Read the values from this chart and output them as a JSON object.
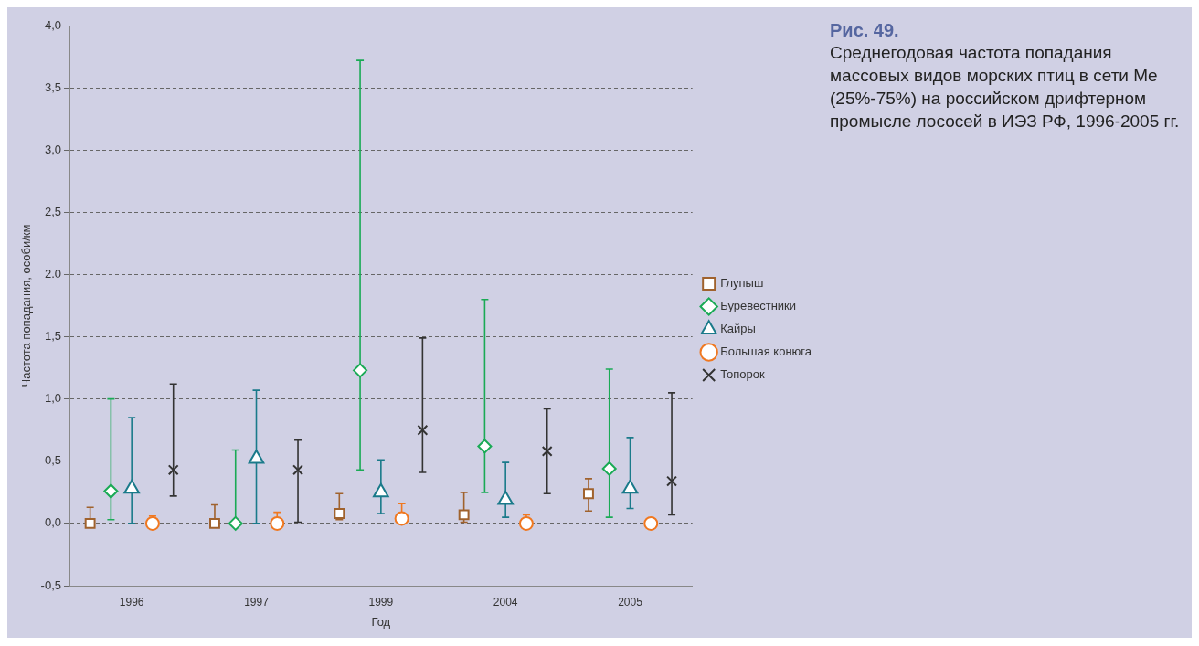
{
  "chart_data": {
    "type": "scatter",
    "title": "Рис. 49.",
    "subtitle": "Среднегодовая частота попадания массовых видов морских птиц в сети Me (25%-75%) на российском дрифтерном промысле лососей в ИЭЗ РФ, 1996-2005 гг.",
    "xlabel": "Год",
    "ylabel": "Частота попадания, особи/км",
    "categories": [
      "1996",
      "1997",
      "1999",
      "2004",
      "2005"
    ],
    "series": [
      {
        "name": "Глупыш",
        "color": "#a0622d",
        "marker": "square",
        "values": [
          0,
          0,
          0.08,
          0.07,
          0.24
        ],
        "errors": [
          [
            0,
            0.13
          ],
          [
            0,
            0.15
          ],
          [
            0.03,
            0.24
          ],
          [
            0.01,
            0.25
          ],
          [
            0.1,
            0.36
          ]
        ]
      },
      {
        "name": "Буревестники",
        "color": "#1aaa55",
        "marker": "diamond",
        "values": [
          0.26,
          0,
          1.23,
          0.62,
          0.44
        ],
        "errors": [
          [
            0.03,
            1.0
          ],
          [
            0,
            0.59
          ],
          [
            0.43,
            3.72
          ],
          [
            0.25,
            1.8
          ],
          [
            0.05,
            1.24
          ]
        ]
      },
      {
        "name": "Кайры",
        "color": "#1a7a8a",
        "marker": "triangle",
        "values": [
          0.28,
          0.52,
          0.25,
          0.19,
          0.28
        ],
        "errors": [
          [
            0,
            0.85
          ],
          [
            0,
            1.07
          ],
          [
            0.08,
            0.51
          ],
          [
            0.05,
            0.49
          ],
          [
            0.12,
            0.69
          ]
        ]
      },
      {
        "name": "Большая конюга",
        "color": "#f07820",
        "marker": "circle",
        "values": [
          0,
          0,
          0.04,
          0,
          0
        ],
        "errors": [
          [
            0,
            0.06
          ],
          [
            0,
            0.09
          ],
          [
            0.02,
            0.16
          ],
          [
            0,
            0.07
          ],
          null
        ]
      },
      {
        "name": "Топорок",
        "color": "#333333",
        "marker": "cross",
        "values": [
          0.43,
          0.43,
          0.75,
          0.58,
          0.34
        ],
        "errors": [
          [
            0.22,
            1.12
          ],
          [
            0.01,
            0.67
          ],
          [
            0.41,
            1.49
          ],
          [
            0.24,
            0.92
          ],
          [
            0.07,
            1.05
          ]
        ]
      }
    ],
    "ylim": [
      -0.5,
      4.0
    ],
    "yticks": [
      {
        "value": -0.5,
        "label": "-0,5"
      },
      {
        "value": 0,
        "label": "0,0"
      },
      {
        "value": 0.5,
        "label": "0,5"
      },
      {
        "value": 1,
        "label": "1,0"
      },
      {
        "value": 1.5,
        "label": "1,5"
      },
      {
        "value": 2,
        "label": "2.0"
      },
      {
        "value": 2.5,
        "label": "2,5"
      },
      {
        "value": 3,
        "label": "3,0"
      },
      {
        "value": 3.5,
        "label": "3,5"
      },
      {
        "value": 4,
        "label": "4,0"
      }
    ],
    "grid": "y",
    "legend": "right"
  }
}
